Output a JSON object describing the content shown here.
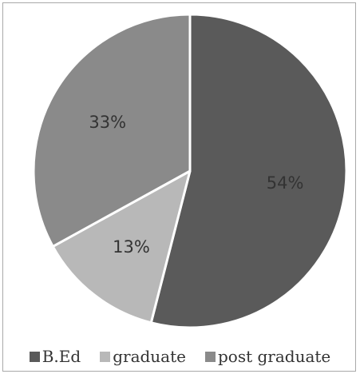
{
  "chart_data": {
    "type": "pie",
    "categories": [
      "B.Ed",
      "graduate",
      "post graduate"
    ],
    "values": [
      54,
      13,
      33
    ],
    "labels": [
      "54%",
      "13%",
      "33%"
    ],
    "colors": [
      "#5a5a5a",
      "#b8b8b8",
      "#8a8a8a"
    ],
    "legend": "bottom",
    "title": ""
  }
}
